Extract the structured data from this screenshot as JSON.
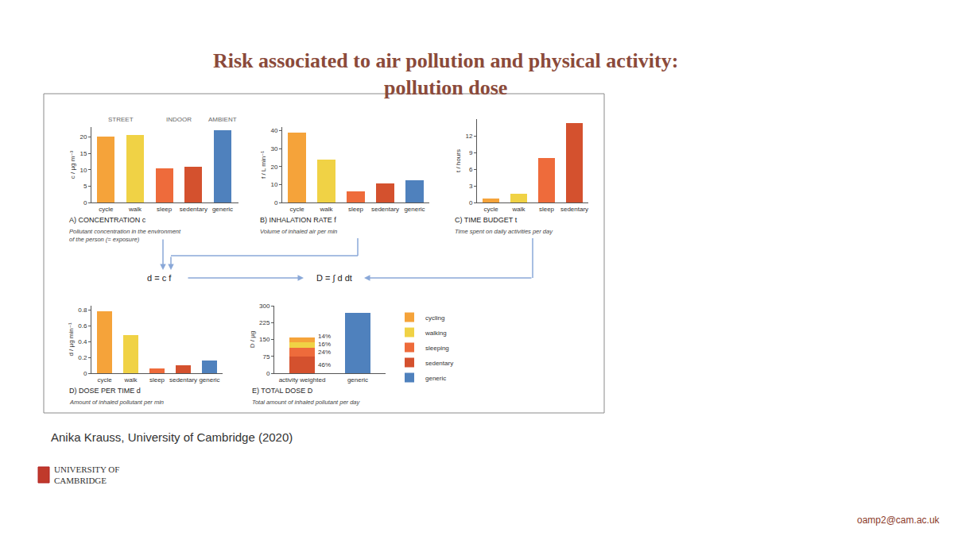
{
  "slide": {
    "title": [
      "Risk associated to air pollution and physical activity:",
      "pollution dose"
    ],
    "formulas": [
      "d = c f",
      "D = ∫ d dt"
    ],
    "credit": "Anika Krauss, University of Cambridge (2020)",
    "logo": [
      "UNIVERSITY OF",
      "CAMBRIDGE"
    ],
    "email": "oamp2@cam.ac.uk"
  },
  "chart_data": [
    {
      "type": "bar",
      "title": "A) CONCENTRATION c",
      "subtitle": [
        "Pollutant concentration in the environment",
        "of the person (= exposure)"
      ],
      "ylabel": "c / µg m⁻³",
      "categories": [
        "cycle",
        "walk",
        "sleep",
        "sedentary",
        "generic"
      ],
      "values": [
        20,
        20.5,
        10.5,
        11,
        22
      ],
      "colors": [
        "#f5a33a",
        "#f0d245",
        "#ee6b3b",
        "#d4512e",
        "#4f81bd"
      ],
      "ylim": [
        0,
        23
      ],
      "yticks": [
        0,
        5,
        10,
        15,
        20
      ],
      "grid": false,
      "annotations": [
        {
          "text": "STREET",
          "categories": [
            "cycle",
            "walk"
          ]
        },
        {
          "text": "INDOOR",
          "categories": [
            "sleep",
            "sedentary"
          ]
        },
        {
          "text": "AMBIENT",
          "categories": [
            "generic"
          ]
        }
      ]
    },
    {
      "type": "bar",
      "title": "B) INHALATION RATE f",
      "subtitle": [
        "Volume of inhaled air per min"
      ],
      "ylabel": "f / L min⁻¹",
      "categories": [
        "cycle",
        "walk",
        "sleep",
        "sedentary",
        "generic"
      ],
      "values": [
        39,
        24,
        6,
        10.5,
        12.5
      ],
      "colors": [
        "#f5a33a",
        "#f0d245",
        "#ee6b3b",
        "#d4512e",
        "#4f81bd"
      ],
      "ylim": [
        0,
        42
      ],
      "yticks": [
        0,
        10,
        20,
        30,
        40
      ],
      "grid": false
    },
    {
      "type": "bar",
      "title": "C) TIME BUDGET t",
      "subtitle": [
        "Time spent on daily activities per day"
      ],
      "ylabel": "t / hours",
      "categories": [
        "cycle",
        "walk",
        "sleep",
        "sedentary"
      ],
      "values": [
        0.7,
        1.6,
        8,
        14.3
      ],
      "colors": [
        "#f5a33a",
        "#f0d245",
        "#ee6b3b",
        "#d4512e"
      ],
      "ylim": [
        0,
        15
      ],
      "yticks": [
        0,
        3,
        6,
        9,
        12
      ],
      "grid": false
    },
    {
      "type": "bar",
      "title": "D) DOSE PER TIME d",
      "subtitle": [
        "Amount of inhaled pollutant per min"
      ],
      "ylabel": "d / µg min⁻¹",
      "categories": [
        "cycle",
        "walk",
        "sleep",
        "sedentary",
        "generic"
      ],
      "values": [
        0.78,
        0.48,
        0.06,
        0.1,
        0.16
      ],
      "colors": [
        "#f5a33a",
        "#f0d245",
        "#ee6b3b",
        "#d4512e",
        "#4f81bd"
      ],
      "ylim": [
        0,
        0.85
      ],
      "yticks": [
        0,
        0.2,
        0.4,
        0.6,
        0.8
      ],
      "grid": false
    },
    {
      "type": "bar",
      "title": "E) TOTAL DOSE D",
      "subtitle": [
        "Total amount of inhaled pollutant per day"
      ],
      "ylabel": "D / µg",
      "categories": [
        "activity weighted",
        "generic"
      ],
      "stacked": true,
      "series": [
        {
          "name": "cycling",
          "color": "#f5a33a",
          "values": [
            22,
            null
          ]
        },
        {
          "name": "walking",
          "color": "#f0d245",
          "values": [
            26,
            null
          ]
        },
        {
          "name": "sleeping",
          "color": "#ee6b3b",
          "values": [
            38,
            null
          ]
        },
        {
          "name": "sedentary",
          "color": "#d4512e",
          "values": [
            74,
            null
          ]
        },
        {
          "name": "generic",
          "color": "#4f81bd",
          "values": [
            null,
            270
          ]
        }
      ],
      "ylim": [
        0,
        300
      ],
      "yticks": [
        0,
        75,
        150,
        225,
        300
      ],
      "grid": false,
      "legend": "right",
      "annotations": [
        {
          "text": "14%",
          "series": "cycling",
          "category": "activity weighted"
        },
        {
          "text": "16%",
          "series": "walking",
          "category": "activity weighted"
        },
        {
          "text": "24%",
          "series": "sleeping",
          "category": "activity weighted"
        },
        {
          "text": "46%",
          "series": "sedentary",
          "category": "activity weighted"
        }
      ]
    }
  ]
}
